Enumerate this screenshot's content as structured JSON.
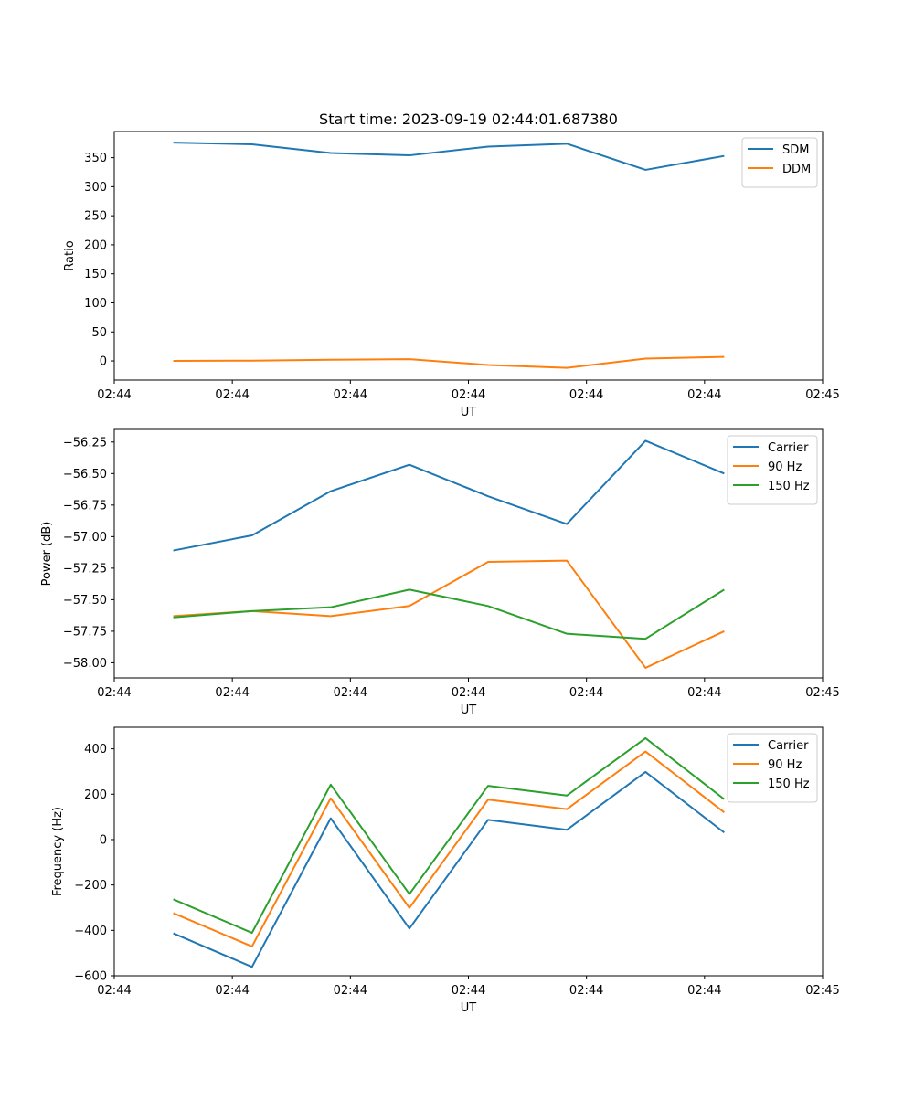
{
  "figure_title": "Start time: 2023-09-19 02:44:01.687380",
  "colors": {
    "blue": "#1f77b4",
    "orange": "#ff7f0e",
    "green": "#2ca02c"
  },
  "chart_data": [
    {
      "type": "line",
      "title": "Start time: 2023-09-19 02:44:01.687380",
      "xlabel": "UT",
      "ylabel": "Ratio",
      "xlim": [
        0,
        18
      ],
      "ylim": [
        -33,
        395
      ],
      "x": [
        1.5,
        3.5,
        5.5,
        7.5,
        9.5,
        11.5,
        13.5,
        15.5
      ],
      "xticks": [
        0.0,
        3.0,
        6.0,
        9.0,
        12.0,
        15.0,
        18.0
      ],
      "xtick_labels": [
        "02:44",
        "02:44",
        "02:44",
        "02:44",
        "02:44",
        "02:44",
        "02:45"
      ],
      "yticks": [
        0,
        50,
        100,
        150,
        200,
        250,
        300,
        350
      ],
      "ytick_labels": [
        "0",
        "50",
        "100",
        "150",
        "200",
        "250",
        "300",
        "350"
      ],
      "legend_position": "top-right",
      "series": [
        {
          "name": "SDM",
          "color": "#1f77b4",
          "values": [
            376,
            373,
            358,
            354,
            369,
            374,
            329,
            353
          ]
        },
        {
          "name": "DDM",
          "color": "#ff7f0e",
          "values": [
            0,
            0.5,
            2,
            3,
            -7,
            -12,
            4,
            7
          ]
        }
      ]
    },
    {
      "type": "line",
      "title": "",
      "xlabel": "UT",
      "ylabel": "Power (dB)",
      "xlim": [
        0,
        18
      ],
      "ylim": [
        -58.12,
        -56.15
      ],
      "x": [
        1.5,
        3.5,
        5.5,
        7.5,
        9.5,
        11.5,
        13.5,
        15.5
      ],
      "xticks": [
        0.0,
        3.0,
        6.0,
        9.0,
        12.0,
        15.0,
        18.0
      ],
      "xtick_labels": [
        "02:44",
        "02:44",
        "02:44",
        "02:44",
        "02:44",
        "02:44",
        "02:45"
      ],
      "yticks": [
        -58.0,
        -57.75,
        -57.5,
        -57.25,
        -57.0,
        -56.75,
        -56.5,
        -56.25
      ],
      "ytick_labels": [
        "−58.00",
        "−57.75",
        "−57.50",
        "−57.25",
        "−57.00",
        "−56.75",
        "−56.50",
        "−56.25"
      ],
      "legend_position": "top-right",
      "series": [
        {
          "name": "Carrier",
          "color": "#1f77b4",
          "values": [
            -57.11,
            -56.99,
            -56.64,
            -56.43,
            -56.68,
            -56.9,
            -56.24,
            -56.5
          ]
        },
        {
          "name": "90 Hz",
          "color": "#ff7f0e",
          "values": [
            -57.63,
            -57.59,
            -57.63,
            -57.55,
            -57.2,
            -57.19,
            -58.04,
            -57.75
          ]
        },
        {
          "name": "150 Hz",
          "color": "#2ca02c",
          "values": [
            -57.64,
            -57.59,
            -57.56,
            -57.42,
            -57.55,
            -57.77,
            -57.81,
            -57.42
          ]
        }
      ]
    },
    {
      "type": "line",
      "title": "",
      "xlabel": "UT",
      "ylabel": "Frequency (Hz)",
      "xlim": [
        0,
        18
      ],
      "ylim": [
        -600,
        495
      ],
      "x": [
        1.5,
        3.5,
        5.5,
        7.5,
        9.5,
        11.5,
        13.5,
        15.5
      ],
      "xticks": [
        0.0,
        3.0,
        6.0,
        9.0,
        12.0,
        15.0,
        18.0
      ],
      "xtick_labels": [
        "02:44",
        "02:44",
        "02:44",
        "02:44",
        "02:44",
        "02:44",
        "02:45"
      ],
      "yticks": [
        -600,
        -400,
        -200,
        0,
        200,
        400
      ],
      "ytick_labels": [
        "−600",
        "−400",
        "−200",
        "0",
        "200",
        "400"
      ],
      "legend_position": "top-right",
      "series": [
        {
          "name": "Carrier",
          "color": "#1f77b4",
          "values": [
            -413,
            -561,
            94,
            -392,
            87,
            43,
            298,
            31
          ]
        },
        {
          "name": "90 Hz",
          "color": "#ff7f0e",
          "values": [
            -324,
            -471,
            182,
            -301,
            176,
            134,
            388,
            120
          ]
        },
        {
          "name": "150 Hz",
          "color": "#2ca02c",
          "values": [
            -263,
            -411,
            242,
            -240,
            237,
            194,
            447,
            178
          ]
        }
      ]
    }
  ]
}
